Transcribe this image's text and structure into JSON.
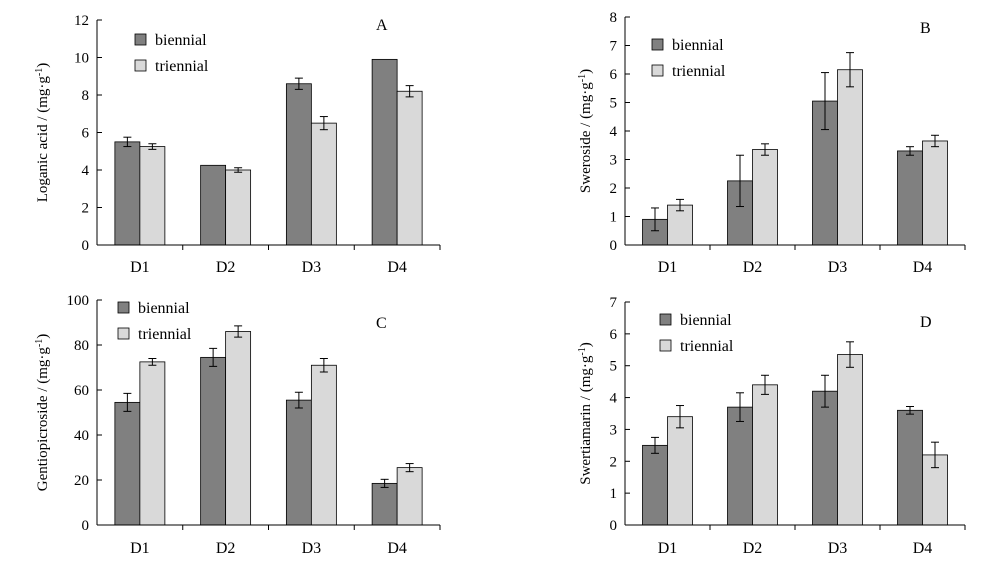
{
  "colors": {
    "biennial": "#808080",
    "triennial": "#d9d9d9",
    "axis": "#000000"
  },
  "chart_data": [
    {
      "type": "bar",
      "panel_label": "A",
      "ylabel": "Loganic acid / (mg·g",
      "ylabel_sup": "-1",
      "ylabel_close": ")",
      "categories": [
        "D1",
        "D2",
        "D3",
        "D4"
      ],
      "ylim": [
        0,
        12
      ],
      "yticks": [
        0,
        2,
        4,
        6,
        8,
        10,
        12
      ],
      "legend_position": "top-left",
      "series": [
        {
          "name": "biennial",
          "values": [
            5.5,
            4.25,
            8.6,
            9.9
          ],
          "errors": [
            0.25,
            0,
            0.3,
            0
          ]
        },
        {
          "name": "triennial",
          "values": [
            5.25,
            4.0,
            6.5,
            8.2
          ],
          "errors": [
            0.15,
            0.12,
            0.35,
            0.3
          ]
        }
      ]
    },
    {
      "type": "bar",
      "panel_label": "B",
      "ylabel": "Sweroside / (mg·g",
      "ylabel_sup": "-1",
      "ylabel_close": ")",
      "categories": [
        "D1",
        "D2",
        "D3",
        "D4"
      ],
      "ylim": [
        0,
        8
      ],
      "yticks": [
        0,
        1,
        2,
        3,
        4,
        5,
        6,
        7,
        8
      ],
      "legend_position": "top-left",
      "series": [
        {
          "name": "biennial",
          "values": [
            0.9,
            2.25,
            5.05,
            3.3
          ],
          "errors": [
            0.4,
            0.9,
            1.0,
            0.15
          ]
        },
        {
          "name": "triennial",
          "values": [
            1.4,
            3.35,
            6.15,
            3.65
          ],
          "errors": [
            0.2,
            0.2,
            0.6,
            0.2
          ]
        }
      ]
    },
    {
      "type": "bar",
      "panel_label": "C",
      "ylabel": "Gentiopicroside / (mg·g",
      "ylabel_sup": "-1",
      "ylabel_close": ")",
      "categories": [
        "D1",
        "D2",
        "D3",
        "D4"
      ],
      "ylim": [
        0,
        100
      ],
      "yticks": [
        0,
        20,
        40,
        60,
        80,
        100
      ],
      "legend_position": "top-left",
      "series": [
        {
          "name": "biennial",
          "values": [
            54.5,
            74.5,
            55.5,
            18.5
          ],
          "errors": [
            4,
            4,
            3.5,
            1.8
          ]
        },
        {
          "name": "triennial",
          "values": [
            72.5,
            86,
            71,
            25.5
          ],
          "errors": [
            1.5,
            2.5,
            3,
            1.8
          ]
        }
      ]
    },
    {
      "type": "bar",
      "panel_label": "D",
      "ylabel": "Swertiamarin / (mg·g",
      "ylabel_sup": "-1",
      "ylabel_close": ")",
      "categories": [
        "D1",
        "D2",
        "D3",
        "D4"
      ],
      "ylim": [
        0,
        7
      ],
      "yticks": [
        0,
        1,
        2,
        3,
        4,
        5,
        6,
        7
      ],
      "legend_position": "top-left",
      "series": [
        {
          "name": "biennial",
          "values": [
            2.5,
            3.7,
            4.2,
            3.6
          ],
          "errors": [
            0.25,
            0.45,
            0.5,
            0.12
          ]
        },
        {
          "name": "triennial",
          "values": [
            3.4,
            4.4,
            5.35,
            2.2
          ],
          "errors": [
            0.35,
            0.3,
            0.4,
            0.4
          ]
        }
      ]
    }
  ]
}
